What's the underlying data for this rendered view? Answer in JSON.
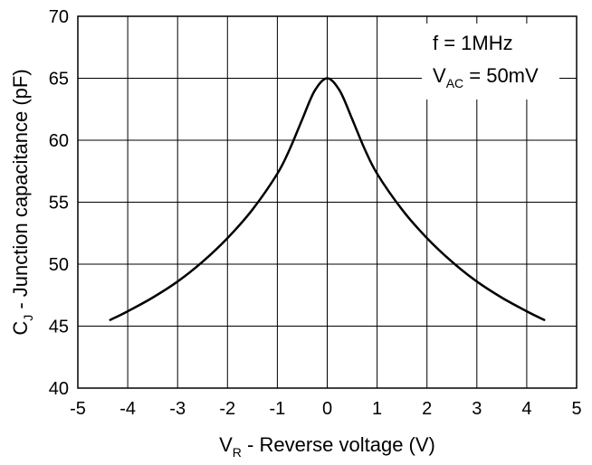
{
  "chart_data": {
    "type": "line",
    "xlabel": {
      "main": "V",
      "sub": "R",
      "rest": " - Reverse voltage (V)"
    },
    "ylabel": {
      "main": "C",
      "sub": "J",
      "rest": " - Junction capacitance (pF)"
    },
    "xlim": [
      -5,
      5
    ],
    "ylim": [
      40,
      70
    ],
    "x_ticks": [
      -5,
      -4,
      -3,
      -2,
      -1,
      0,
      1,
      2,
      3,
      4,
      5
    ],
    "y_ticks": [
      40,
      45,
      50,
      55,
      60,
      65,
      70
    ],
    "grid": true,
    "annotations": {
      "line1": "f = 1MHz",
      "line2": {
        "main": "V",
        "sub": "AC",
        "rest": " = 50mV"
      }
    },
    "series": [
      {
        "color": "#000000",
        "x": [
          -4.35,
          -4.0,
          -3.5,
          -3.0,
          -2.5,
          -2.0,
          -1.5,
          -1.0,
          -0.75,
          -0.5,
          -0.25,
          0.0,
          0.25,
          0.5,
          0.75,
          1.0,
          1.5,
          2.0,
          2.5,
          3.0,
          3.5,
          4.0,
          4.35
        ],
        "y": [
          45.5,
          46.2,
          47.3,
          48.6,
          50.2,
          52.1,
          54.4,
          57.3,
          59.3,
          61.7,
          64.0,
          65.0,
          64.0,
          61.7,
          59.3,
          57.3,
          54.4,
          52.1,
          50.2,
          48.6,
          47.3,
          46.2,
          45.5
        ]
      }
    ]
  }
}
